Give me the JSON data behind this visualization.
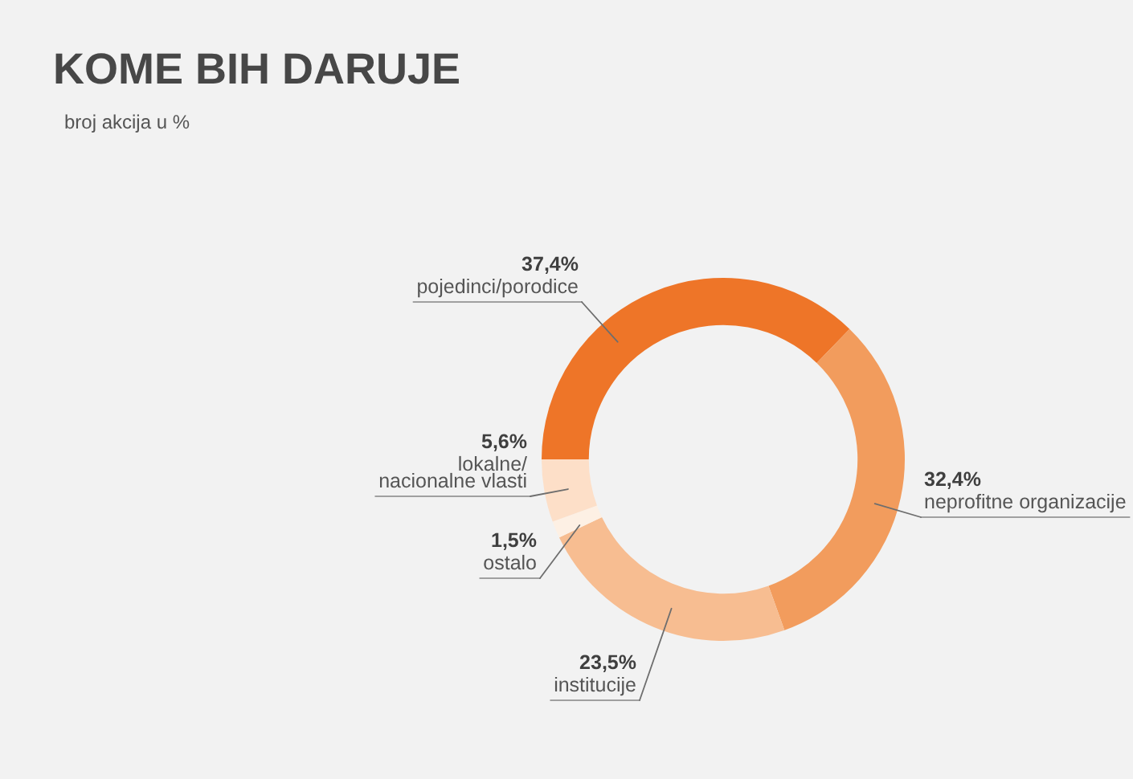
{
  "chart_data": {
    "type": "donut",
    "title": "KOME BIH DARUJE",
    "subtitle": "broj akcija u %",
    "categories": [
      "pojedinci/porodice",
      "neprofitne organizacije",
      "institucije",
      "ostalo",
      "lokalne/\nnacionalne vlasti"
    ],
    "values": [
      37.4,
      32.4,
      23.5,
      1.5,
      5.6
    ],
    "value_labels": [
      "37,4%",
      "32,4%",
      "23,5%",
      "1,5%",
      "5,6%"
    ],
    "colors": [
      "#ee7528",
      "#f29c5d",
      "#f7bd91",
      "#fdf0e4",
      "#fddfc8"
    ]
  }
}
